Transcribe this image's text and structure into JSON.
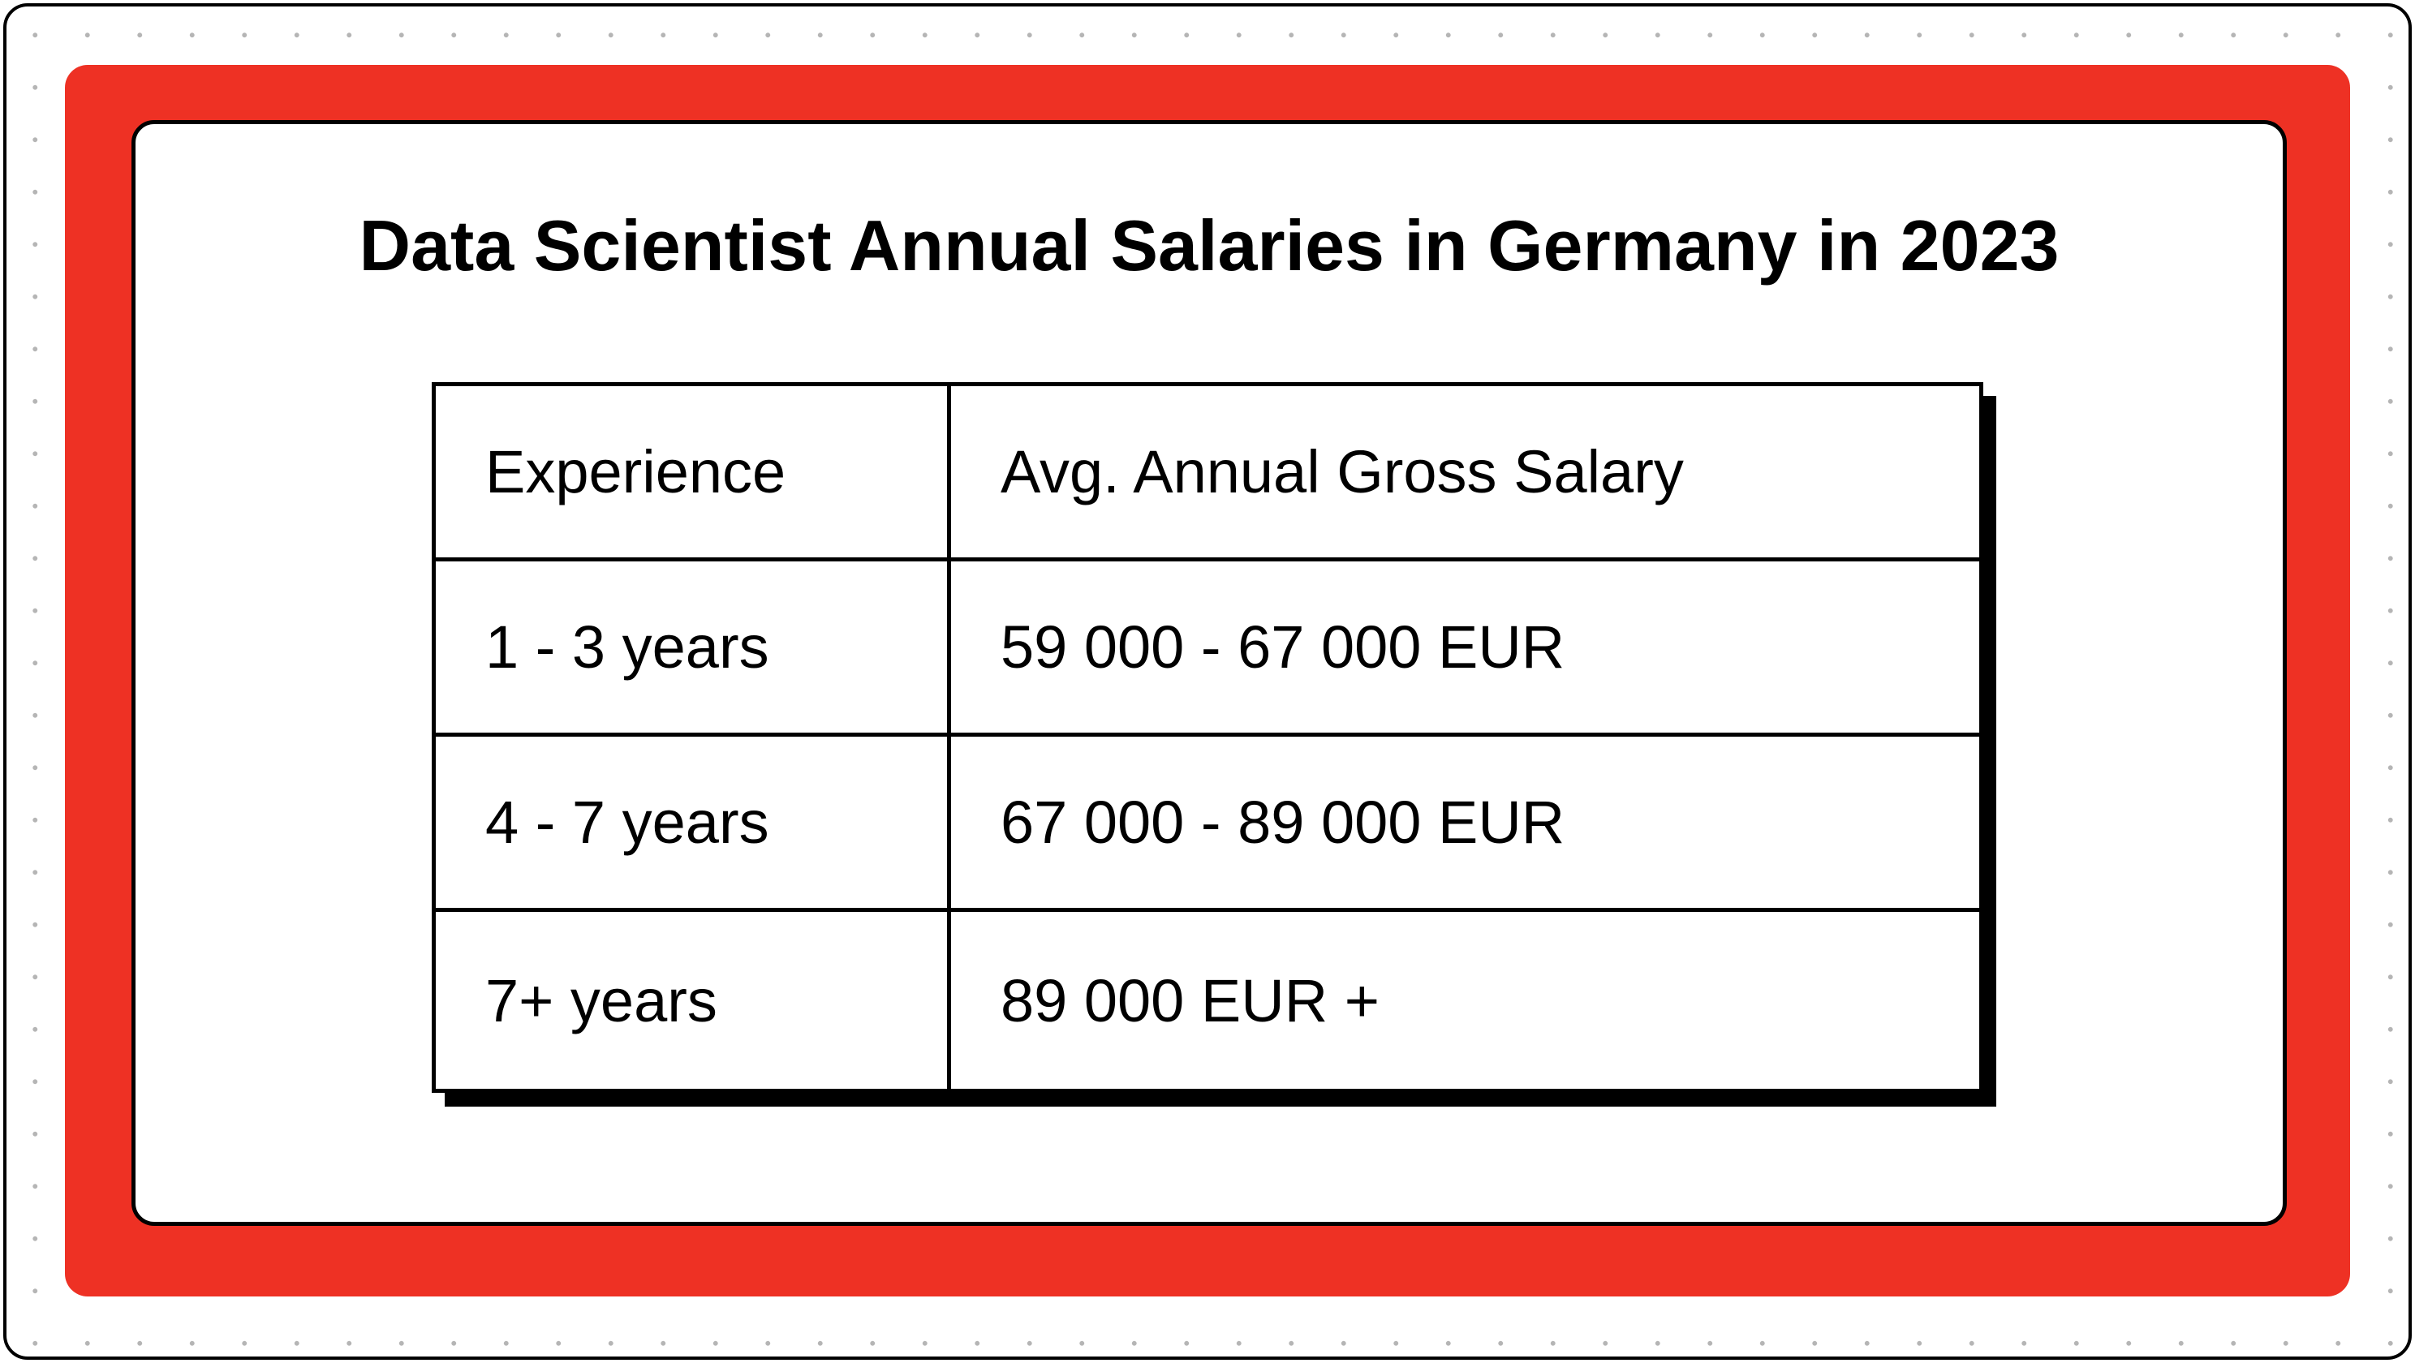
{
  "colors": {
    "accent": "#ee3124",
    "border": "#000000",
    "card_background": "#ffffff",
    "dot_grid": "#b5b5b5"
  },
  "title": "Data Scientist Annual Salaries in Germany in 2023",
  "table": {
    "headers": [
      "Experience",
      "Avg. Annual Gross Salary"
    ],
    "rows": [
      [
        "1 - 3 years",
        "59 000 - 67 000 EUR"
      ],
      [
        "4 - 7 years",
        "67 000 - 89 000 EUR"
      ],
      [
        "7+ years",
        "89 000 EUR +"
      ]
    ]
  }
}
